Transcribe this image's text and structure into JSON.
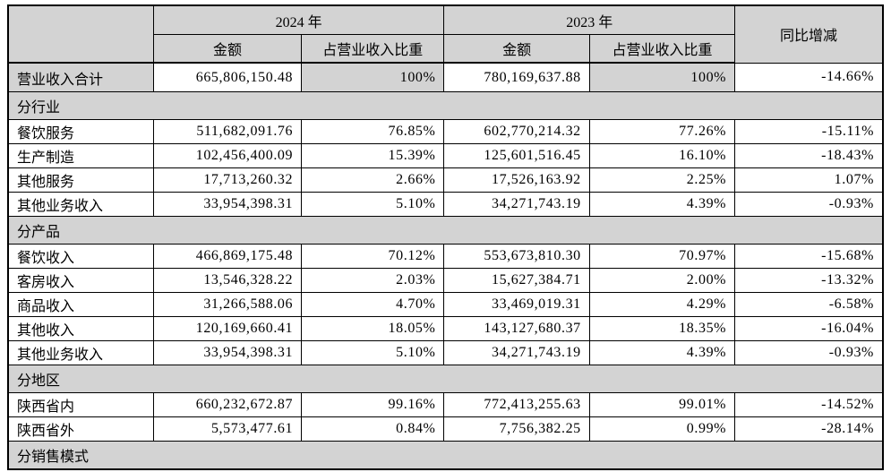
{
  "table": {
    "title_semantic": "营业收入构成表",
    "header": {
      "corner": "",
      "year_2024": "2024 年",
      "year_2023": "2023 年",
      "amount": "金额",
      "ratio": "占营业收入比重",
      "yoy": "同比增减"
    },
    "colors": {
      "header_fill": "#d3d3d3",
      "section_fill": "#d3d3d3",
      "border": "#000000",
      "cell_fill": "#ffffff"
    },
    "rows": [
      {
        "type": "total",
        "label": "营业收入合计",
        "amount_2024": "665,806,150.48",
        "ratio_2024": "100%",
        "amount_2023": "780,169,637.88",
        "ratio_2023": "100%",
        "yoy": "-14.66%"
      },
      {
        "type": "section",
        "label": "分行业"
      },
      {
        "type": "data",
        "label": "餐饮服务",
        "amount_2024": "511,682,091.76",
        "ratio_2024": "76.85%",
        "amount_2023": "602,770,214.32",
        "ratio_2023": "77.26%",
        "yoy": "-15.11%"
      },
      {
        "type": "data",
        "label": "生产制造",
        "amount_2024": "102,456,400.09",
        "ratio_2024": "15.39%",
        "amount_2023": "125,601,516.45",
        "ratio_2023": "16.10%",
        "yoy": "-18.43%"
      },
      {
        "type": "data",
        "label": "其他服务",
        "amount_2024": "17,713,260.32",
        "ratio_2024": "2.66%",
        "amount_2023": "17,526,163.92",
        "ratio_2023": "2.25%",
        "yoy": "1.07%"
      },
      {
        "type": "data",
        "label": "其他业务收入",
        "amount_2024": "33,954,398.31",
        "ratio_2024": "5.10%",
        "amount_2023": "34,271,743.19",
        "ratio_2023": "4.39%",
        "yoy": "-0.93%"
      },
      {
        "type": "section",
        "label": "分产品"
      },
      {
        "type": "data",
        "label": "餐饮收入",
        "amount_2024": "466,869,175.48",
        "ratio_2024": "70.12%",
        "amount_2023": "553,673,810.30",
        "ratio_2023": "70.97%",
        "yoy": "-15.68%"
      },
      {
        "type": "data",
        "label": "客房收入",
        "amount_2024": "13,546,328.22",
        "ratio_2024": "2.03%",
        "amount_2023": "15,627,384.71",
        "ratio_2023": "2.00%",
        "yoy": "-13.32%"
      },
      {
        "type": "data",
        "label": "商品收入",
        "amount_2024": "31,266,588.06",
        "ratio_2024": "4.70%",
        "amount_2023": "33,469,019.31",
        "ratio_2023": "4.29%",
        "yoy": "-6.58%"
      },
      {
        "type": "data",
        "label": "其他收入",
        "amount_2024": "120,169,660.41",
        "ratio_2024": "18.05%",
        "amount_2023": "143,127,680.37",
        "ratio_2023": "18.35%",
        "yoy": "-16.04%"
      },
      {
        "type": "data",
        "label": "其他业务收入",
        "amount_2024": "33,954,398.31",
        "ratio_2024": "5.10%",
        "amount_2023": "34,271,743.19",
        "ratio_2023": "4.39%",
        "yoy": "-0.93%"
      },
      {
        "type": "section",
        "label": "分地区"
      },
      {
        "type": "data",
        "label": "陕西省内",
        "amount_2024": "660,232,672.87",
        "ratio_2024": "99.16%",
        "amount_2023": "772,413,255.63",
        "ratio_2023": "99.01%",
        "yoy": "-14.52%"
      },
      {
        "type": "data",
        "label": "陕西省外",
        "amount_2024": "5,573,477.61",
        "ratio_2024": "0.84%",
        "amount_2023": "7,756,382.25",
        "ratio_2023": "0.99%",
        "yoy": "-28.14%"
      },
      {
        "type": "section",
        "label": "分销售模式"
      }
    ]
  }
}
